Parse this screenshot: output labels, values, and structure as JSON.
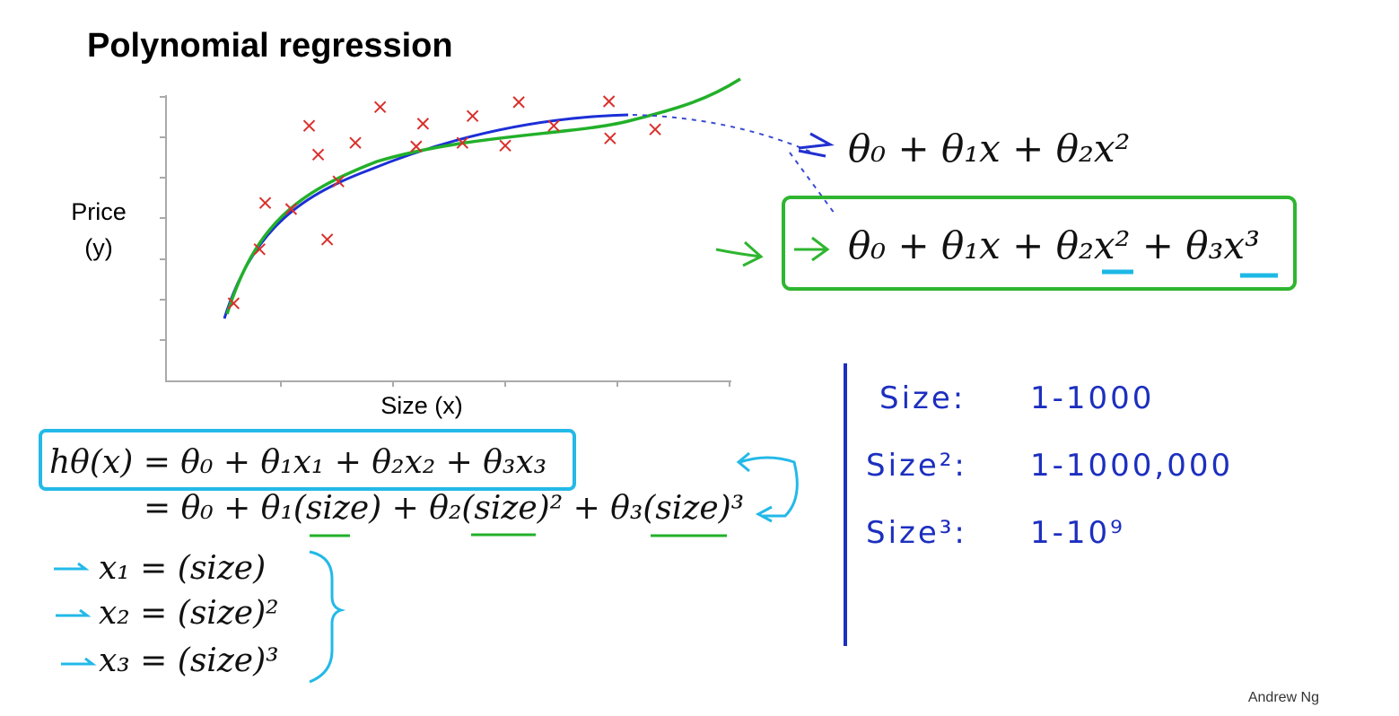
{
  "title": "Polynomial regression",
  "chart": {
    "type": "scatter",
    "ylabel_line1": "Price",
    "ylabel_line2": "(y)",
    "xlabel": "Size (x)",
    "xlim": [
      0,
      5
    ],
    "ylim": [
      0,
      7
    ],
    "marker_color": "#d9302c",
    "x": [
      0.6,
      0.83,
      0.88,
      1.11,
      1.27,
      1.35,
      1.43,
      1.53,
      1.68,
      1.9,
      2.22,
      2.28,
      2.63,
      2.72,
      3.01,
      3.13,
      3.44,
      3.93,
      3.94,
      4.34
    ],
    "y": [
      1.92,
      3.25,
      4.39,
      4.24,
      6.29,
      5.58,
      3.49,
      4.92,
      5.87,
      6.75,
      5.78,
      6.34,
      5.87,
      6.53,
      5.8,
      6.87,
      6.29,
      6.89,
      5.98,
      6.2
    ]
  },
  "models": {
    "quadratic": "θ₀ + θ₁x + θ₂x²",
    "cubic": "θ₀ + θ₁x + θ₂x² + θ₃x³"
  },
  "hypothesis": {
    "line1": "hθ(x) = θ₀ + θ₁x₁ + θ₂x₂ + θ₃x₃",
    "line2": "= θ₀ + θ₁(size) + θ₂(size)² + θ₃(size)³"
  },
  "features": [
    "x₁ = (size)",
    "x₂ = (size)²",
    "x₃ = (size)³"
  ],
  "notes": [
    {
      "label": "Size:",
      "range": "1-1000"
    },
    {
      "label": "Size²:",
      "range": "1-1000,000"
    },
    {
      "label": "Size³:",
      "range": "1-10⁹"
    }
  ],
  "author": "Andrew Ng"
}
